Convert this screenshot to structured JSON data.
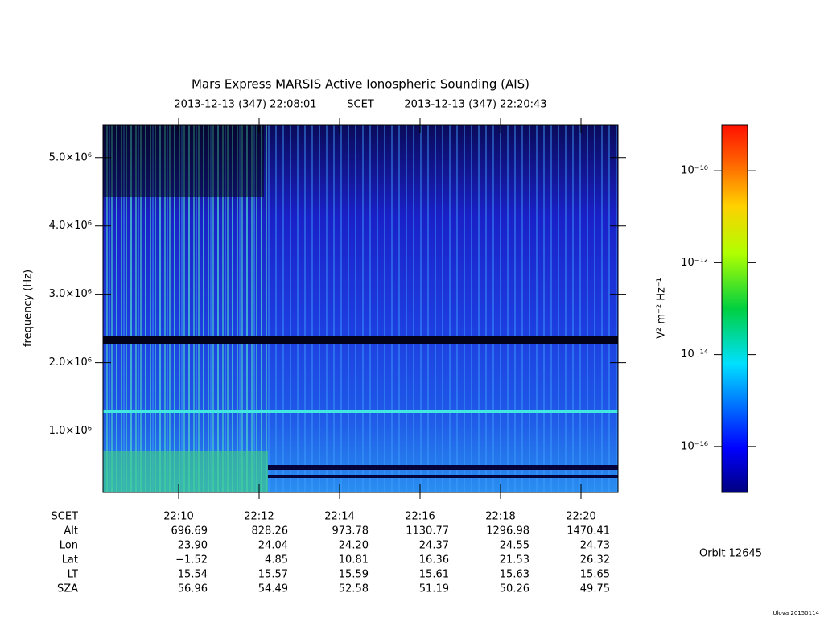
{
  "chart_data": {
    "type": "spectrogram",
    "title": "Mars Express MARSIS Active Ionospheric Sounding (AIS)",
    "start_time": "2013-12-13 (347) 22:08:01",
    "time_label": "SCET",
    "end_time": "2013-12-13 (347) 22:20:43",
    "ylabel": "frequency (Hz)",
    "ylim": [
      100000,
      5480000
    ],
    "yticks": [
      {
        "value": 1000000,
        "label": "1.0×10⁶"
      },
      {
        "value": 2000000,
        "label": "2.0×10⁶"
      },
      {
        "value": 3000000,
        "label": "3.0×10⁶"
      },
      {
        "value": 4000000,
        "label": "4.0×10⁶"
      },
      {
        "value": 5000000,
        "label": "5.0×10⁶"
      }
    ],
    "xlim": [
      8.12,
      20.92
    ],
    "xticks": [
      {
        "value": 10,
        "label": "22:10"
      },
      {
        "value": 12,
        "label": "22:12"
      },
      {
        "value": 14,
        "label": "22:14"
      },
      {
        "value": 16,
        "label": "22:16"
      },
      {
        "value": 18,
        "label": "22:18"
      },
      {
        "value": 20,
        "label": "22:20"
      }
    ],
    "ephemeris": {
      "time_row_label": "SCET",
      "rows": [
        {
          "label": "Alt",
          "values": [
            "696.69",
            "828.26",
            "973.78",
            "1130.77",
            "1296.98",
            "1470.41"
          ]
        },
        {
          "label": "Lon",
          "values": [
            "23.90",
            "24.04",
            "24.20",
            "24.37",
            "24.55",
            "24.73"
          ]
        },
        {
          "label": "Lat",
          "values": [
            "−1.52",
            "4.85",
            "10.81",
            "16.36",
            "21.53",
            "26.32"
          ]
        },
        {
          "label": "LT",
          "values": [
            "15.54",
            "15.57",
            "15.59",
            "15.61",
            "15.63",
            "15.65"
          ]
        },
        {
          "label": "SZA",
          "values": [
            "56.96",
            "54.49",
            "52.58",
            "51.19",
            "50.26",
            "49.75"
          ]
        }
      ]
    },
    "colorbar": {
      "label": "V² m⁻² Hz⁻¹",
      "log": true,
      "clim": [
        1e-17,
        1e-09
      ],
      "ticks": [
        {
          "value": 1e-10,
          "label": "10⁻¹⁰"
        },
        {
          "value": 1e-12,
          "label": "10⁻¹²"
        },
        {
          "value": 1e-14,
          "label": "10⁻¹⁴"
        },
        {
          "value": 1e-16,
          "label": "10⁻¹⁶"
        }
      ]
    },
    "orbit": "Orbit 12645",
    "footer": "Ulova 20150114"
  }
}
